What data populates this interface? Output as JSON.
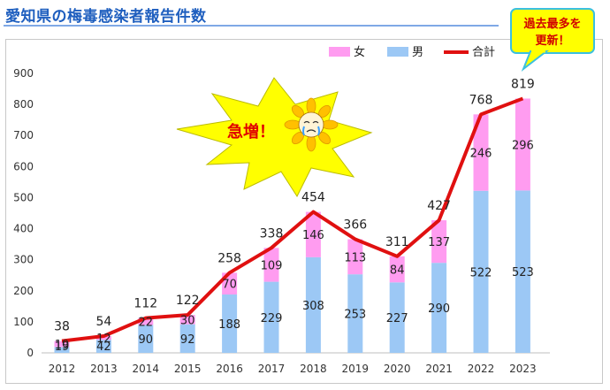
{
  "title": "愛知県の梅毒感染者報告件数",
  "callout": {
    "line1": "過去最多を",
    "line2": "更新！"
  },
  "burst": {
    "text": "急増！",
    "mascot_icon": "crying-sunflower-icon"
  },
  "colors": {
    "female": "#ff9cf0",
    "male": "#9cc8f5",
    "total": "#e01010",
    "title": "#1f5fbf"
  },
  "chart_data": {
    "type": "bar",
    "stacked": true,
    "categories": [
      "2012",
      "2013",
      "2014",
      "2015",
      "2016",
      "2017",
      "2018",
      "2019",
      "2020",
      "2021",
      "2022",
      "2023"
    ],
    "series": [
      {
        "name": "男",
        "kind": "bar",
        "values": [
          19,
          42,
          90,
          92,
          188,
          229,
          308,
          253,
          227,
          290,
          522,
          523
        ]
      },
      {
        "name": "女",
        "kind": "bar",
        "values": [
          19,
          12,
          22,
          30,
          70,
          109,
          146,
          113,
          84,
          137,
          246,
          296
        ]
      },
      {
        "name": "合計",
        "kind": "line",
        "values": [
          38,
          54,
          112,
          122,
          258,
          338,
          454,
          366,
          311,
          427,
          768,
          819
        ]
      }
    ],
    "yticks": [
      0,
      100,
      200,
      300,
      400,
      500,
      600,
      700,
      800,
      900
    ],
    "ylim": [
      0,
      900
    ],
    "legend": [
      "女",
      "男",
      "合計"
    ],
    "legend_position": "top-right",
    "grid": false
  }
}
